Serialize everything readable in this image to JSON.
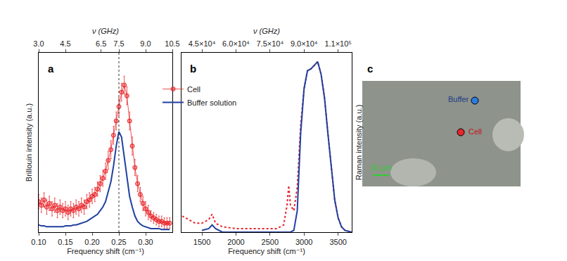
{
  "chart_data": [
    {
      "panel": "a",
      "type": "scatter",
      "xlabel": "Frequency shift (cm⁻¹)",
      "ylabel": "Brillouin intensity (a.u.)",
      "x2label": "ν (GHz)",
      "xlim": [
        0.1,
        0.35
      ],
      "xticks": [
        {
          "value": 0.1,
          "label": "0.10"
        },
        0.15,
        {
          "value": 0.2,
          "label": "0.20"
        },
        0.25,
        {
          "value": 0.3,
          "label": "0.30"
        }
      ],
      "x2lim": [
        3.0,
        10.5
      ],
      "x2ticks": [
        {
          "value": 3,
          "label": "3.0"
        },
        4.5,
        6.5,
        7.5,
        {
          "value": 9,
          "label": "9.0"
        },
        10.5
      ],
      "ylim": [
        0,
        1
      ],
      "tick_labels": "x",
      "legend": "upper right",
      "vlines": [
        0.25
      ],
      "x": [
        0.1,
        0.105,
        0.11,
        0.115,
        0.12,
        0.125,
        0.13,
        0.135,
        0.14,
        0.145,
        0.15,
        0.155,
        0.16,
        0.165,
        0.17,
        0.175,
        0.18,
        0.185,
        0.19,
        0.195,
        0.2,
        0.205,
        0.21,
        0.215,
        0.22,
        0.225,
        0.23,
        0.235,
        0.24,
        0.245,
        0.25,
        0.255,
        0.26,
        0.265,
        0.27,
        0.275,
        0.28,
        0.285,
        0.29,
        0.295,
        0.3,
        0.305,
        0.31,
        0.315,
        0.32,
        0.325,
        0.33,
        0.335,
        0.34,
        0.345
      ],
      "series": [
        {
          "name": "Cell",
          "color": "#e8262b",
          "marker": "circle",
          "line_style": "solid",
          "values": [
            0.17,
            0.15,
            0.18,
            0.14,
            0.16,
            0.13,
            0.15,
            0.12,
            0.14,
            0.12,
            0.13,
            0.11,
            0.13,
            0.12,
            0.14,
            0.13,
            0.15,
            0.14,
            0.17,
            0.18,
            0.2,
            0.21,
            0.24,
            0.27,
            0.3,
            0.34,
            0.4,
            0.46,
            0.54,
            0.62,
            0.7,
            0.78,
            0.82,
            0.76,
            0.62,
            0.48,
            0.36,
            0.27,
            0.21,
            0.16,
            0.13,
            0.11,
            0.09,
            0.08,
            0.07,
            0.06,
            0.06,
            0.05,
            0.05,
            0.05
          ],
          "error": [
            0.04,
            0.04,
            0.04,
            0.04,
            0.04,
            0.04,
            0.04,
            0.04,
            0.04,
            0.04,
            0.04,
            0.04,
            0.04,
            0.04,
            0.04,
            0.04,
            0.04,
            0.04,
            0.04,
            0.04,
            0.04,
            0.04,
            0.04,
            0.045,
            0.045,
            0.045,
            0.05,
            0.05,
            0.05,
            0.05,
            0.05,
            0.05,
            0.05,
            0.05,
            0.05,
            0.05,
            0.045,
            0.045,
            0.04,
            0.04,
            0.04,
            0.04,
            0.03,
            0.03,
            0.03,
            0.03,
            0.03,
            0.03,
            0.03,
            0.03
          ]
        },
        {
          "name": "Buffer solution",
          "color": "#2140a0",
          "line_style": "solid",
          "values": [
            0.04,
            0.035,
            0.035,
            0.03,
            0.03,
            0.03,
            0.03,
            0.03,
            0.03,
            0.03,
            0.035,
            0.035,
            0.035,
            0.04,
            0.04,
            0.045,
            0.05,
            0.055,
            0.06,
            0.07,
            0.08,
            0.09,
            0.1,
            0.12,
            0.14,
            0.17,
            0.22,
            0.28,
            0.37,
            0.48,
            0.56,
            0.53,
            0.42,
            0.3,
            0.2,
            0.14,
            0.09,
            0.06,
            0.045,
            0.035,
            0.03,
            0.025,
            0.02,
            0.02,
            0.02,
            0.02,
            0.015,
            0.015,
            0.015,
            0.015
          ]
        }
      ]
    },
    {
      "panel": "b",
      "type": "line",
      "xlabel": "Frequency shift (cm⁻¹)",
      "ylabel": "Raman intensity (a.u.)",
      "x2label": "ν (GHz)",
      "xlim": [
        1200,
        3700
      ],
      "xticks": [
        1500,
        2000,
        2500,
        3000,
        3500
      ],
      "x2lim": [
        36000,
        111000
      ],
      "x2ticks": [
        {
          "value": 45000,
          "label": "4.5×10⁴"
        },
        {
          "value": 60000,
          "label": "6.0×10⁴"
        },
        {
          "value": 75000,
          "label": "7.5×10⁴"
        },
        {
          "value": 90000,
          "label": "9.0×10⁴"
        },
        {
          "value": 105000,
          "label": "1.1×10⁵"
        }
      ],
      "ylim": [
        0,
        1
      ],
      "tick_labels": "x",
      "x": [
        1210,
        1300,
        1400,
        1500,
        1600,
        1650,
        1700,
        1800,
        2000,
        2200,
        2400,
        2600,
        2700,
        2750,
        2775,
        2800,
        2850,
        2900,
        2950,
        3000,
        3050,
        3100,
        3150,
        3200,
        3250,
        3300,
        3350,
        3400,
        3450,
        3500,
        3550,
        3600,
        3700
      ],
      "series": [
        {
          "name": "Cell",
          "color": "#e8262b",
          "line_style": "dotted",
          "values": [
            0.09,
            0.07,
            0.05,
            0.05,
            0.07,
            0.1,
            0.05,
            0.03,
            0.02,
            0.02,
            0.02,
            0.02,
            0.04,
            0.15,
            0.26,
            0.15,
            0.12,
            0.25,
            0.6,
            0.8,
            0.9,
            0.91,
            0.93,
            0.95,
            0.88,
            0.75,
            0.55,
            0.35,
            0.18,
            0.08,
            0.03,
            0.01,
            0.0
          ]
        },
        {
          "name": "Buffer solution",
          "color": "#2140a0",
          "line_style": "solid",
          "values": [
            null,
            null,
            null,
            0.01,
            0.02,
            0.04,
            0.02,
            0.0,
            0.0,
            0.0,
            0.0,
            0.0,
            0.0,
            0.0,
            0.0,
            0.0,
            0.01,
            0.12,
            0.55,
            0.8,
            0.9,
            0.91,
            0.93,
            0.95,
            0.88,
            0.75,
            0.55,
            0.35,
            0.18,
            0.08,
            0.03,
            0.01,
            0.0
          ]
        }
      ]
    },
    {
      "panel": "c",
      "type": "image",
      "points": [
        {
          "name": "Buffer",
          "color": "#2a7de1"
        },
        {
          "name": "Cell",
          "color": "#e8262b"
        }
      ],
      "scale_bar": {
        "label": "10 µm",
        "color": "#33cc33"
      }
    }
  ]
}
